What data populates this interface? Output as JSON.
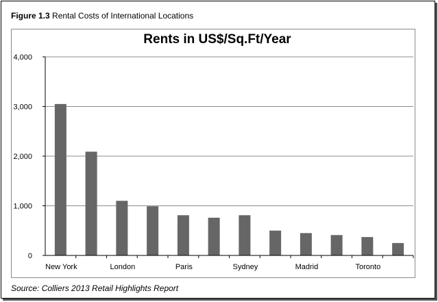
{
  "figure": {
    "label": "Figure 1.3",
    "caption": "Rental Costs of International Locations",
    "source": "Source: Colliers 2013 Retail Highlights Report"
  },
  "colors": {
    "bar": "#666666",
    "grid": "#8c8c8c",
    "axis": "#000000"
  },
  "chart_data": {
    "type": "bar",
    "title": "Rents in US$/Sq.Ft/Year",
    "xlabel": "",
    "ylabel": "",
    "ylim": [
      0,
      4000
    ],
    "yticks": [
      0,
      1000,
      2000,
      3000,
      4000
    ],
    "ytick_labels": [
      "0",
      "1,000",
      "2,000",
      "3,000",
      "4,000"
    ],
    "grid": true,
    "legend": "none",
    "categories": [
      "New York",
      "",
      "London",
      "",
      "Paris",
      "",
      "Sydney",
      "",
      "Madrid",
      "",
      "Toronto",
      ""
    ],
    "values": [
      3050,
      2090,
      1100,
      990,
      810,
      760,
      810,
      500,
      450,
      410,
      370,
      250
    ]
  }
}
